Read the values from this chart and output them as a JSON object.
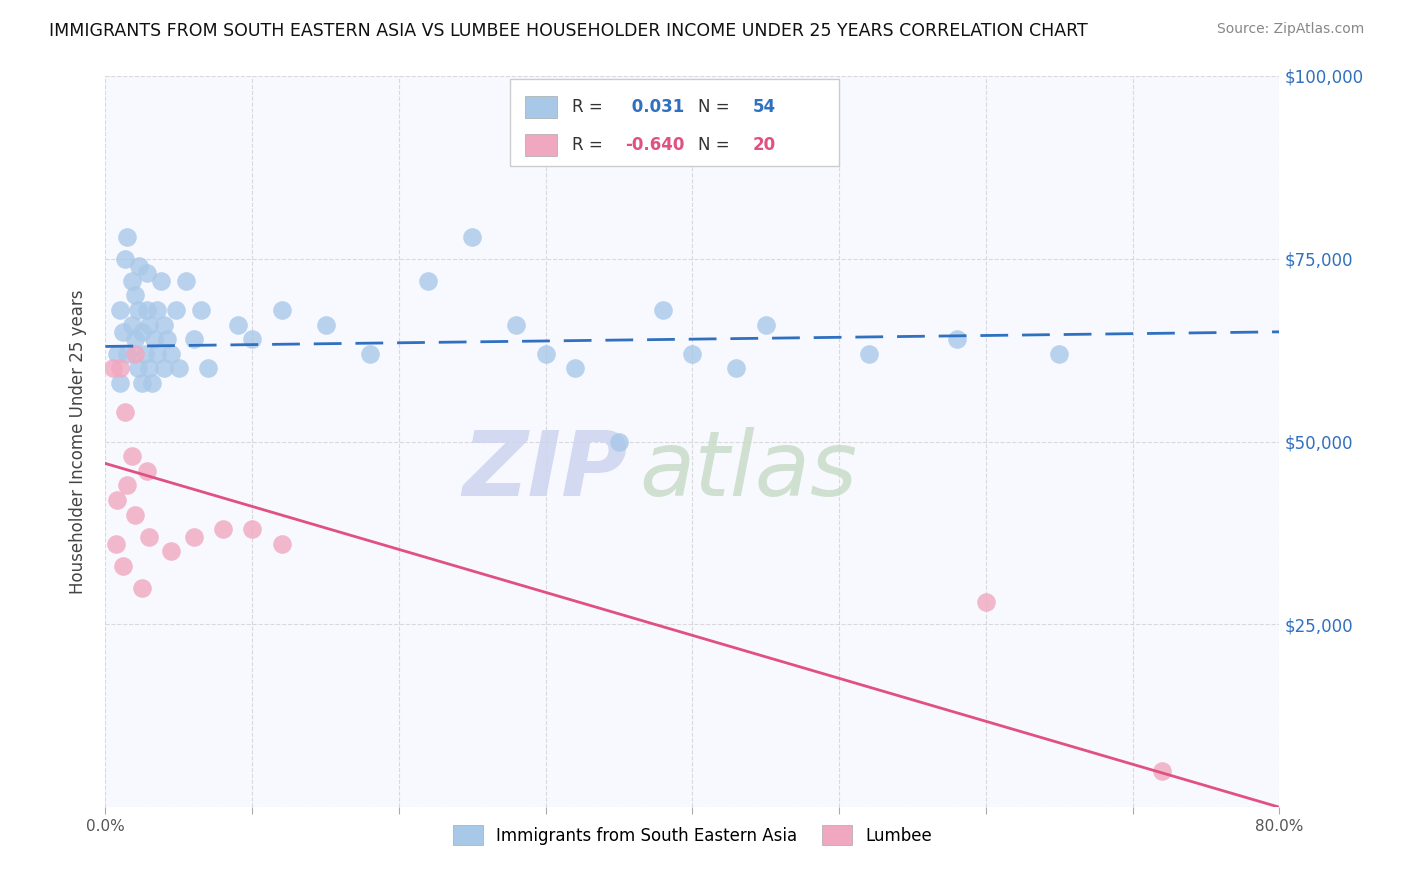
{
  "title": "IMMIGRANTS FROM SOUTH EASTERN ASIA VS LUMBEE HOUSEHOLDER INCOME UNDER 25 YEARS CORRELATION CHART",
  "source": "Source: ZipAtlas.com",
  "ylabel": "Householder Income Under 25 years",
  "y_ticks": [
    0,
    25000,
    50000,
    75000,
    100000
  ],
  "y_tick_labels": [
    "",
    "$25,000",
    "$50,000",
    "$75,000",
    "$100,000"
  ],
  "x_ticks": [
    0.0,
    0.1,
    0.2,
    0.3,
    0.4,
    0.5,
    0.6,
    0.7,
    0.8
  ],
  "blue_R": "0.031",
  "blue_N": "54",
  "pink_R": "-0.640",
  "pink_N": "20",
  "blue_label": "Immigrants from South Eastern Asia",
  "pink_label": "Lumbee",
  "blue_color": "#a8c8e8",
  "pink_color": "#f0a8c0",
  "blue_line_color": "#3070c0",
  "pink_line_color": "#e05080",
  "background_color": "#ffffff",
  "plot_background": "#f8f8ff",
  "watermark_zip_color": "#ccd4ee",
  "watermark_atlas_color": "#c8dcc8",
  "blue_x": [
    0.008,
    0.01,
    0.01,
    0.012,
    0.013,
    0.015,
    0.015,
    0.018,
    0.018,
    0.02,
    0.02,
    0.022,
    0.022,
    0.023,
    0.025,
    0.025,
    0.027,
    0.028,
    0.028,
    0.03,
    0.03,
    0.032,
    0.033,
    0.035,
    0.035,
    0.038,
    0.04,
    0.04,
    0.042,
    0.045,
    0.048,
    0.05,
    0.055,
    0.06,
    0.065,
    0.07,
    0.09,
    0.1,
    0.12,
    0.15,
    0.18,
    0.22,
    0.25,
    0.28,
    0.3,
    0.32,
    0.35,
    0.38,
    0.4,
    0.43,
    0.45,
    0.52,
    0.58,
    0.65
  ],
  "blue_y": [
    62000,
    58000,
    68000,
    65000,
    75000,
    62000,
    78000,
    66000,
    72000,
    64000,
    70000,
    60000,
    68000,
    74000,
    58000,
    65000,
    62000,
    68000,
    73000,
    60000,
    66000,
    58000,
    64000,
    62000,
    68000,
    72000,
    60000,
    66000,
    64000,
    62000,
    68000,
    60000,
    72000,
    64000,
    68000,
    60000,
    66000,
    64000,
    68000,
    66000,
    62000,
    72000,
    78000,
    66000,
    62000,
    60000,
    50000,
    68000,
    62000,
    60000,
    66000,
    62000,
    64000,
    62000
  ],
  "pink_x": [
    0.005,
    0.007,
    0.008,
    0.01,
    0.012,
    0.013,
    0.015,
    0.018,
    0.02,
    0.02,
    0.025,
    0.028,
    0.03,
    0.045,
    0.06,
    0.08,
    0.1,
    0.12,
    0.6,
    0.72
  ],
  "pink_y": [
    60000,
    36000,
    42000,
    60000,
    33000,
    54000,
    44000,
    48000,
    40000,
    62000,
    30000,
    46000,
    37000,
    35000,
    37000,
    38000,
    38000,
    36000,
    28000,
    5000
  ],
  "blue_trend_y0": 63000,
  "blue_trend_y1": 65000,
  "pink_trend_y0": 47000,
  "pink_trend_y1": 0
}
